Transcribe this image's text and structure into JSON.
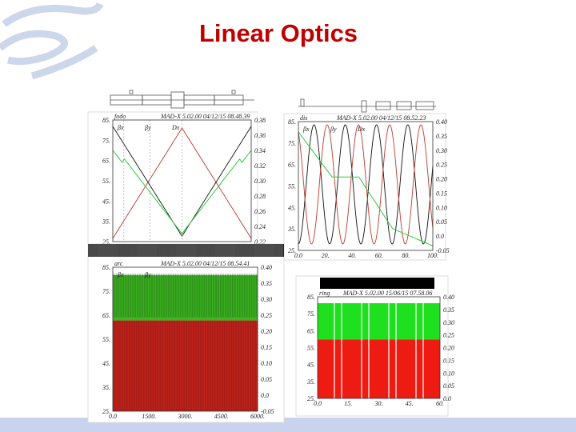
{
  "title": "Linear Optics",
  "panels": [
    {
      "tag": "fodo",
      "header": "MAD-X 5.02.00  04/12/15 08.48.39",
      "legend": [
        "βx",
        "βy",
        "Dx"
      ],
      "left_ticks": [
        "85.",
        "75.",
        "65.",
        "55.",
        "45.",
        "35.",
        "25."
      ],
      "right_ticks": [
        "0.38",
        "0.36",
        "0.34",
        "0.32",
        "0.30",
        "0.28",
        "0.26",
        "0.24",
        "0.22"
      ],
      "bottom_ticks": []
    },
    {
      "tag": "dis",
      "header": "MAD-X 5.02.00  04/12/15 08.52.23",
      "legend": [
        "βx",
        "βy",
        "Dx"
      ],
      "left_ticks": [
        "85.",
        "75.",
        "65.",
        "55.",
        "45.",
        "35.",
        "25."
      ],
      "right_ticks": [
        "0.40",
        "0.35",
        "0.30",
        "0.25",
        "0.20",
        "0.15",
        "0.10",
        "0.05",
        "0.0",
        "-0.05"
      ],
      "bottom_ticks": [
        "0.0",
        "20.",
        "40.",
        "60.",
        "80.",
        "100."
      ]
    },
    {
      "tag": "arc",
      "header": "MAD-X 5.02.00  04/12/15 08.54.41",
      "legend": [
        "βx",
        "βy"
      ],
      "left_ticks": [
        "85.",
        "75.",
        "65.",
        "55.",
        "45.",
        "35.",
        "25."
      ],
      "right_ticks": [
        "0.40",
        "0.35",
        "0.30",
        "0.25",
        "0.20",
        "0.15",
        "0.10",
        "0.05",
        "0.0",
        "-0.05"
      ],
      "bottom_ticks": [
        "0.0",
        "1500.",
        "3000.",
        "4500.",
        "6000."
      ]
    },
    {
      "tag": "ring",
      "header": "MAD-X 5.02.00  15/06/15 07.58.06",
      "legend": [],
      "left_ticks": [
        "85.",
        "75.",
        "65.",
        "55.",
        "45.",
        "35.",
        "25."
      ],
      "right_ticks": [
        "0.40",
        "0.35",
        "0.30",
        "0.25",
        "0.20",
        "0.15",
        "0.10",
        "0.05",
        "0.0"
      ],
      "bottom_ticks": [
        "0.0",
        "15.",
        "30.",
        "45.",
        "60."
      ]
    }
  ]
}
